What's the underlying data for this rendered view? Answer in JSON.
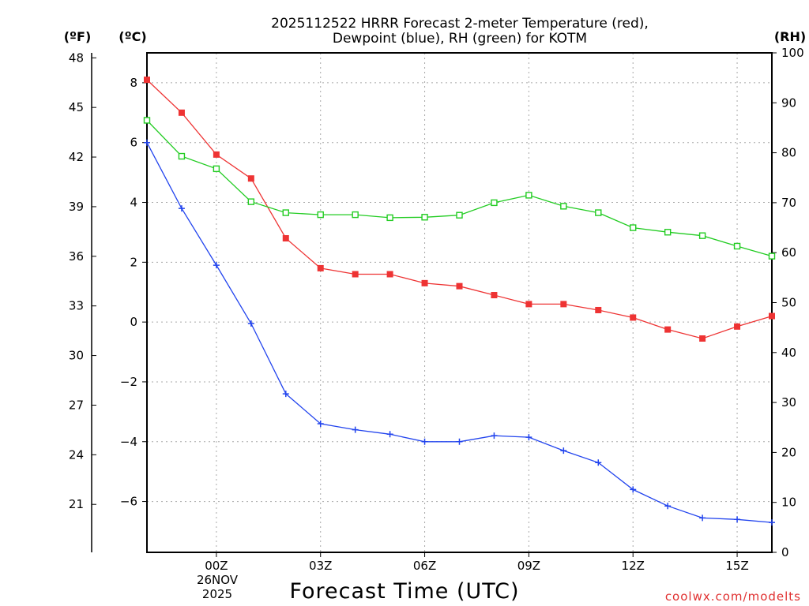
{
  "chart_data": {
    "type": "line",
    "title": [
      "2025112522 HRRR Forecast 2-meter Temperature (red),",
      "Dewpoint (blue), RH (green) for KOTM"
    ],
    "xlabel": "Forecast Time (UTC)",
    "date_label": [
      "26NOV",
      "2025"
    ],
    "credit": "coolwx.com/modelts",
    "units": {
      "fahrenheit": "(ºF)",
      "celsius": "(ºC)",
      "rh": "(RH)"
    },
    "x": [
      -2,
      -1,
      0,
      1,
      2,
      3,
      4,
      5,
      6,
      7,
      8,
      9,
      10,
      11,
      12,
      13,
      14,
      15,
      16
    ],
    "xlim": [
      -2,
      16
    ],
    "x_ticks": [
      0,
      3,
      6,
      9,
      12,
      15
    ],
    "x_tick_labels": [
      "00Z",
      "03Z",
      "06Z",
      "09Z",
      "12Z",
      "15Z"
    ],
    "y_celsius": {
      "ylim": [
        -7.7,
        9.0
      ],
      "ticks": [
        8,
        6,
        4,
        2,
        0,
        -2,
        -4,
        -6
      ],
      "tick_labels": [
        "8",
        "6",
        "4",
        "2",
        "0",
        "−2",
        "−4",
        "−6"
      ]
    },
    "y_fahrenheit": {
      "ylim": [
        18.1,
        48.3
      ],
      "ticks": [
        48,
        45,
        42,
        39,
        36,
        33,
        30,
        27,
        24,
        21
      ],
      "tick_labels": [
        "48",
        "45",
        "42",
        "39",
        "36",
        "33",
        "30",
        "27",
        "24",
        "21"
      ]
    },
    "y_rh": {
      "ylim": [
        0,
        100
      ],
      "ticks": [
        100,
        90,
        80,
        70,
        60,
        50,
        40,
        30,
        20,
        10,
        0
      ],
      "tick_labels": [
        "100",
        "90",
        "80",
        "70",
        "60",
        "50",
        "40",
        "30",
        "20",
        "10",
        "0"
      ]
    },
    "series": [
      {
        "name": "Temperature",
        "axis": "celsius",
        "color": "#ee3333",
        "marker": "filled-square",
        "values": [
          8.1,
          7.0,
          5.6,
          4.8,
          2.8,
          1.8,
          1.6,
          1.6,
          1.3,
          1.2,
          0.9,
          0.6,
          0.6,
          0.4,
          0.15,
          -0.25,
          -0.55,
          -0.15,
          0.2
        ]
      },
      {
        "name": "Dewpoint",
        "axis": "celsius",
        "color": "#2244ee",
        "marker": "plus",
        "values": [
          6.0,
          3.8,
          1.9,
          -0.05,
          -2.4,
          -3.4,
          -3.6,
          -3.75,
          -4.0,
          -4.0,
          -3.8,
          -3.85,
          -4.3,
          -4.7,
          -5.6,
          -6.15,
          -6.55,
          -6.6,
          -6.7
        ]
      },
      {
        "name": "RH",
        "axis": "rh",
        "color": "#22cc22",
        "marker": "open-square",
        "values": [
          86.5,
          79.3,
          76.8,
          70.2,
          68.0,
          67.6,
          67.6,
          67.0,
          67.1,
          67.5,
          70.0,
          71.5,
          69.3,
          68.0,
          65.0,
          64.1,
          63.4,
          61.3,
          59.3
        ]
      }
    ]
  }
}
